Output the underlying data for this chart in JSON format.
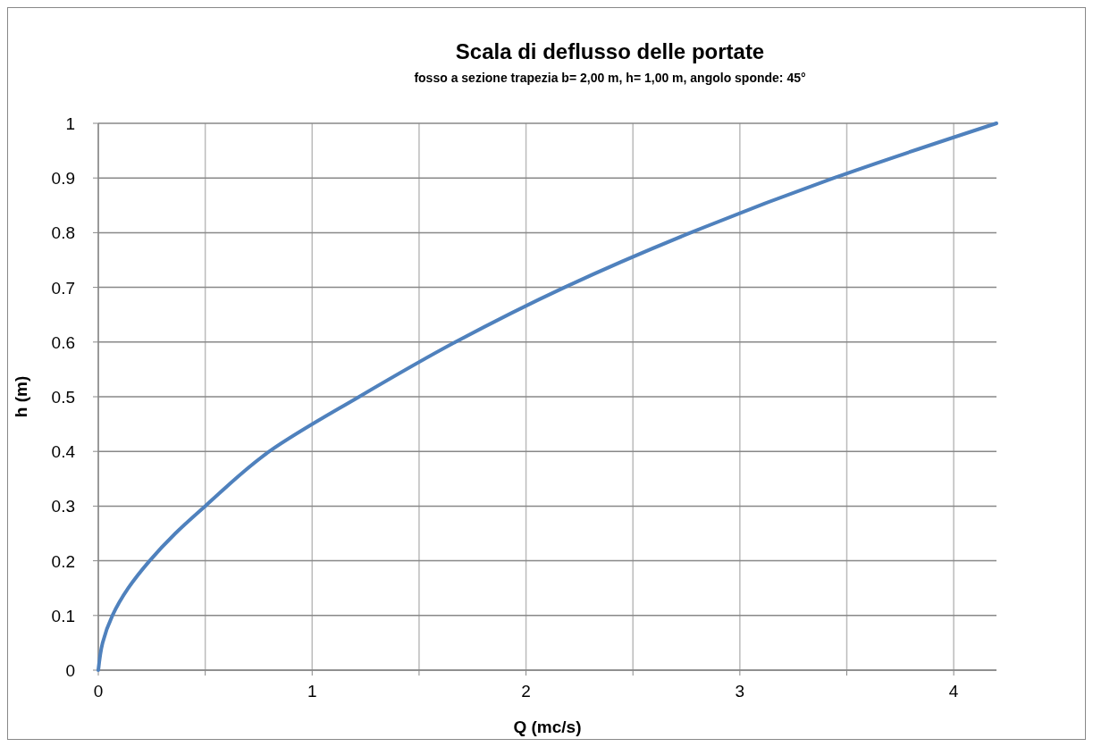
{
  "chart_data": {
    "type": "line",
    "title": "Scala di deflusso delle portate",
    "subtitle": "fosso a sezione trapezia b= 2,00 m, h= 1,00 m,  angolo sponde: 45°",
    "xlabel": "Q (mc/s)",
    "ylabel": "h (m)",
    "x": [
      0,
      0.02,
      0.066,
      0.14,
      0.24,
      0.36,
      0.5,
      0.8,
      1.22,
      1.67,
      2.18,
      2.77,
      3.44,
      4.2
    ],
    "series": [
      {
        "color": "#4f81bd",
        "values": [
          0,
          0.05,
          0.1,
          0.15,
          0.2,
          0.25,
          0.3,
          0.4,
          0.5,
          0.6,
          0.7,
          0.8,
          0.9,
          1
        ]
      }
    ],
    "xlim": [
      0,
      4.2
    ],
    "ylim": [
      0,
      1
    ],
    "xticks": [
      0,
      {
        "value": 0.5,
        "label": null
      },
      1,
      {
        "value": 1.5,
        "label": null
      },
      2,
      {
        "value": 2.5,
        "label": null
      },
      3,
      {
        "value": 3.5,
        "label": null
      },
      4
    ],
    "yticks": [
      0,
      0.1,
      0.2,
      0.3,
      0.4,
      0.5,
      0.6,
      0.7,
      0.8,
      0.9,
      1
    ],
    "grid": true,
    "marker": "none",
    "line_style": "solid"
  }
}
